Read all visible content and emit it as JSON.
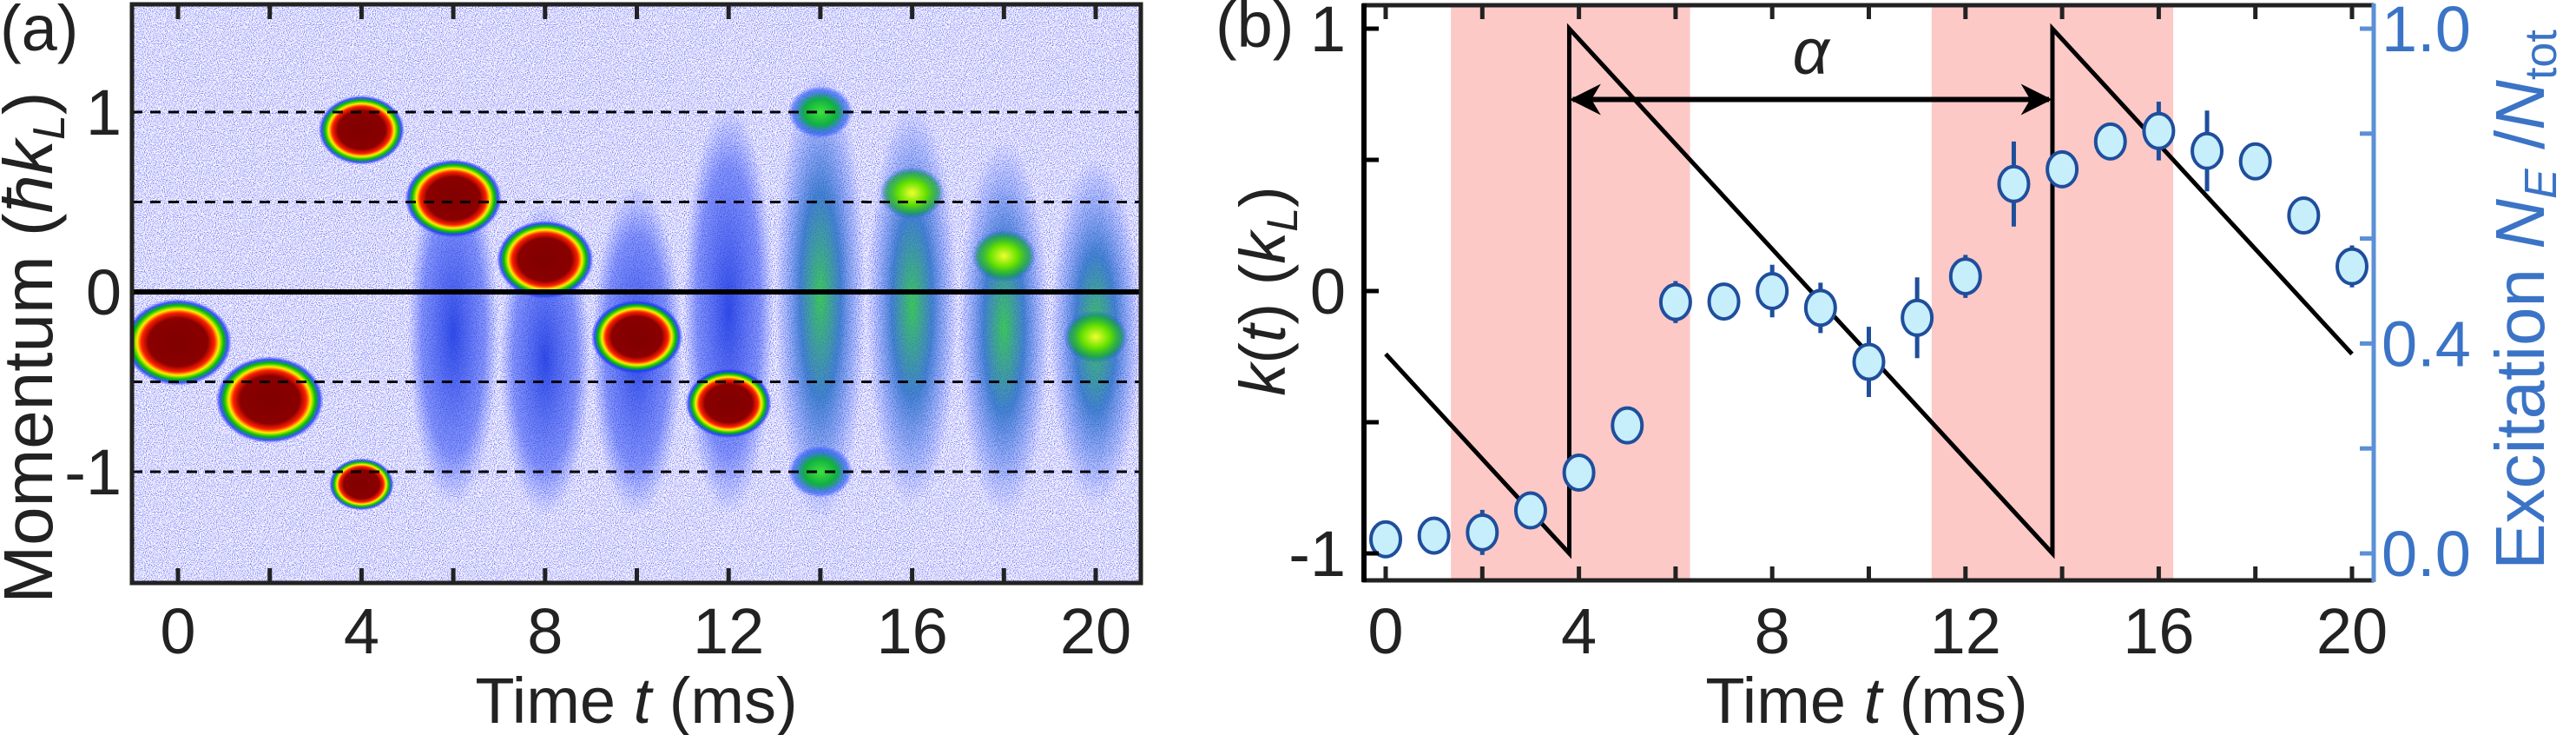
{
  "chart_data": [
    {
      "panel_label": "(a)",
      "type": "heatmap",
      "xlabel": {
        "pre": "Time ",
        "var": "t",
        "post": " (ms)"
      },
      "ylabel": {
        "pre": "Momentum (",
        "var": "ħk",
        "sub": "L",
        "post": ")"
      },
      "xlim": [
        -1,
        21
      ],
      "ylim": [
        -1.6,
        1.6
      ],
      "xticks": [
        0,
        2,
        4,
        6,
        8,
        10,
        12,
        14,
        16,
        18,
        20
      ],
      "xtick_labels": [
        "0",
        "4",
        "8",
        "12",
        "16",
        "20"
      ],
      "xtick_label_values": [
        0,
        4,
        8,
        12,
        16,
        20
      ],
      "yticks": [
        1,
        0,
        -1
      ],
      "ytick_labels": [
        "1",
        "0",
        "-1"
      ],
      "reference_lines": {
        "solid": [
          0
        ],
        "dashed": [
          1,
          0.5,
          -0.5,
          -1
        ]
      },
      "colormap": [
        "#ffffff",
        "#1a1aff",
        "#00c800",
        "#ffff00",
        "#ff0000",
        "#800000"
      ],
      "peaks": [
        {
          "t": 0,
          "k": -0.28,
          "level": "red",
          "size": 1.0
        },
        {
          "t": 2,
          "k": -0.6,
          "level": "red",
          "size": 1.0
        },
        {
          "t": 4,
          "k": 0.9,
          "level": "red",
          "size": 0.8
        },
        {
          "t": 4,
          "k": -1.07,
          "level": "red",
          "size": 0.6
        },
        {
          "t": 6,
          "k": 0.52,
          "level": "red",
          "size": 0.9
        },
        {
          "t": 8,
          "k": 0.18,
          "level": "red",
          "size": 0.9
        },
        {
          "t": 10,
          "k": -0.25,
          "level": "red",
          "size": 0.85
        },
        {
          "t": 12,
          "k": -0.62,
          "level": "red",
          "size": 0.8
        },
        {
          "t": 14,
          "k": 1.0,
          "level": "green",
          "size": 0.6
        },
        {
          "t": 14,
          "k": -1.0,
          "level": "green",
          "size": 0.6
        },
        {
          "t": 16,
          "k": 0.55,
          "level": "yellow",
          "size": 0.6
        },
        {
          "t": 18,
          "k": 0.2,
          "level": "yellow",
          "size": 0.6
        },
        {
          "t": 20,
          "k": -0.25,
          "level": "yellow",
          "size": 0.6
        }
      ],
      "clouds": [
        {
          "t": 6,
          "k_top": 0.6,
          "k_bottom": -1.05,
          "level": "blue"
        },
        {
          "t": 8,
          "k_top": 0.35,
          "k_bottom": -1.1,
          "level": "blue"
        },
        {
          "t": 10,
          "k_top": 0.45,
          "k_bottom": -1.1,
          "level": "blue"
        },
        {
          "t": 12,
          "k_top": 0.9,
          "k_bottom": -1.1,
          "level": "blue"
        },
        {
          "t": 14,
          "k_top": 1.1,
          "k_bottom": -1.15,
          "level": "green"
        },
        {
          "t": 16,
          "k_top": 0.9,
          "k_bottom": -1.05,
          "level": "green"
        },
        {
          "t": 18,
          "k_top": 0.7,
          "k_bottom": -1.1,
          "level": "green"
        },
        {
          "t": 20,
          "k_top": 0.6,
          "k_bottom": -1.05,
          "level": "green"
        }
      ]
    },
    {
      "panel_label": "(b)",
      "type": "scatter",
      "xlabel": {
        "pre": "Time ",
        "var": "t",
        "post": " (ms)"
      },
      "ylabel_left": {
        "var1": "k",
        "mid": "(",
        "var2": "t",
        "mid2": ") (",
        "var3": "k",
        "sub": "L",
        "post": ")"
      },
      "ylabel_right": {
        "pre": "Excitation ",
        "var1": "N",
        "sub1": "E",
        "slash": " /",
        "var2": "N",
        "sub2": "tot"
      },
      "xlim": [
        -0.5,
        20.5
      ],
      "ylim_left": [
        -1.1,
        1.1
      ],
      "ylim_right": [
        -0.05,
        1.05
      ],
      "xticks": [
        0,
        2,
        4,
        6,
        8,
        10,
        12,
        14,
        16,
        18,
        20
      ],
      "xtick_labels": [
        "0",
        "4",
        "8",
        "12",
        "16",
        "20"
      ],
      "xtick_label_values": [
        0,
        4,
        8,
        12,
        16,
        20
      ],
      "yticks_left": [
        1,
        0.5,
        0,
        -0.5,
        -1
      ],
      "ytick_labels_left": [
        "1",
        "0",
        "-1"
      ],
      "ytick_label_values_left": [
        1,
        0,
        -1
      ],
      "yticks_right": [
        1.0,
        0.8,
        0.6,
        0.4,
        0.2,
        0.0
      ],
      "ytick_labels_right": [
        "1.0",
        "0.4",
        "0.0"
      ],
      "ytick_label_values_right": [
        1.0,
        0.4,
        0.0
      ],
      "shaded_intervals_ms": [
        [
          1.35,
          6.3
        ],
        [
          11.3,
          16.3
        ]
      ],
      "shade_color": "#fdc9c7",
      "sawtooth_k": [
        [
          0,
          -0.24
        ],
        [
          3.8,
          -1
        ],
        [
          3.8,
          1
        ],
        [
          13.8,
          -1
        ],
        [
          13.8,
          1
        ],
        [
          20,
          -0.24
        ]
      ],
      "period_arrow": {
        "label": "α",
        "t_start": 3.8,
        "t_end": 13.8,
        "k": 0.73
      },
      "axis_right_color": "#5b8fd6",
      "marker_fill": "#c6eefb",
      "marker_edge": "#1f4e9c",
      "excitation": {
        "t": [
          0,
          1,
          2,
          3,
          4,
          5,
          6,
          7,
          8,
          9,
          10,
          11,
          12,
          13,
          14,
          15,
          16,
          17,
          18,
          19,
          20
        ],
        "value": [
          0.027,
          0.034,
          0.04,
          0.082,
          0.154,
          0.244,
          0.479,
          0.48,
          0.5,
          0.468,
          0.365,
          0.449,
          0.528,
          0.704,
          0.732,
          0.785,
          0.805,
          0.767,
          0.747,
          0.644,
          0.547
        ],
        "error": [
          0,
          0,
          0.043,
          0,
          0,
          0,
          0.04,
          0,
          0.05,
          0.048,
          0.067,
          0.077,
          0.041,
          0.081,
          0,
          0,
          0.056,
          0.077,
          0,
          0,
          0.04
        ]
      }
    }
  ]
}
